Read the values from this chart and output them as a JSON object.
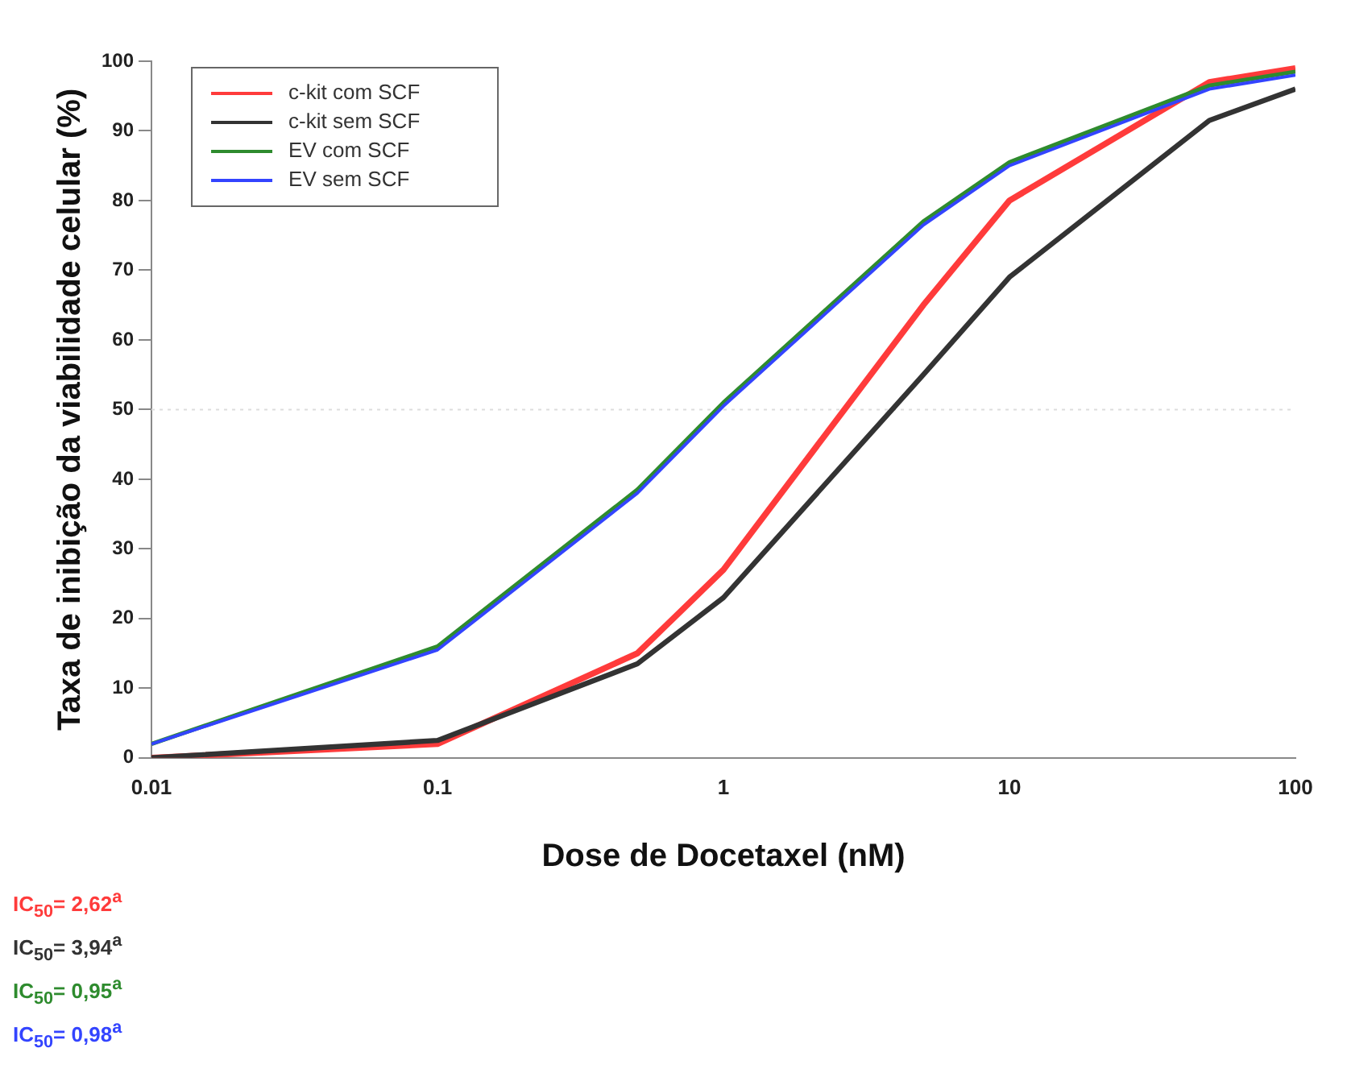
{
  "chart_data": {
    "type": "line",
    "xlabel": "Dose de Docetaxel (nM)",
    "ylabel": "Taxa de inibição da viabilidade celular (%)",
    "x": [
      0.01,
      0.1,
      0.5,
      1,
      5,
      10,
      50,
      100
    ],
    "series": [
      {
        "name": "c-kit com SCF",
        "color": "#ff3b3b",
        "values": [
          0,
          2,
          15,
          27,
          65,
          80,
          97,
          99
        ]
      },
      {
        "name": "c-kit sem SCF",
        "color": "#333333",
        "values": [
          0,
          2.5,
          13.5,
          23,
          55,
          69,
          91.5,
          96
        ]
      },
      {
        "name": "EV com SCF",
        "color": "#2e8b2e",
        "values": [
          2,
          16,
          38.5,
          51,
          77,
          85.5,
          96.5,
          98.5
        ]
      },
      {
        "name": "EV sem SCF",
        "color": "#3344ff",
        "values": [
          2,
          15.5,
          38,
          50.5,
          76.5,
          85,
          96,
          98
        ]
      }
    ],
    "log": "x",
    "xlim": [
      0.01,
      100
    ],
    "xticks": [
      0.01,
      0.1,
      1,
      10,
      100
    ],
    "ylim": [
      0,
      100
    ],
    "yticks": [
      0,
      10,
      20,
      30,
      40,
      50,
      60,
      70,
      80,
      90,
      100
    ],
    "grid": false,
    "legend": "top left",
    "marker": "none",
    "line_style": "solid",
    "ref_lines": [
      {
        "axis": "y",
        "value": 50,
        "color": "#dddddd",
        "line_style": "dotted"
      }
    ],
    "annotations": [
      "IC$_{50}$= 2,62$^{a}$",
      "IC$_{50}$= 3,94$^{a}$",
      "IC$_{50}$= 0,95$^{a}$",
      "IC$_{50}$= 0,98$^{a}$"
    ]
  }
}
